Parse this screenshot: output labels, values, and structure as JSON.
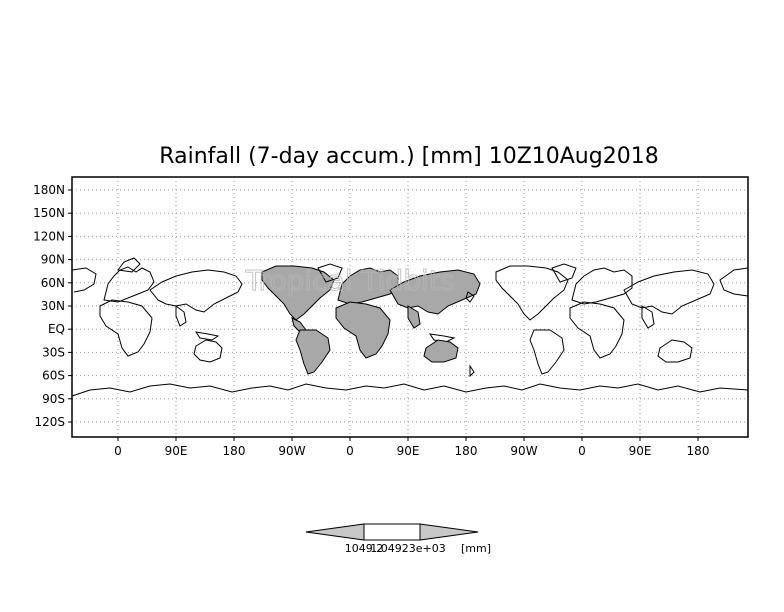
{
  "title": "Rainfall (7-day accum.) [mm] 10Z10Aug2018",
  "watermark": "Tropical Tidbits",
  "lat_labels": [
    "180N",
    "150N",
    "120N",
    "90N",
    "60N",
    "30N",
    "EQ",
    "30S",
    "60S",
    "90S",
    "120S"
  ],
  "lon_labels": [
    "0",
    "90E",
    "180",
    "90W",
    "0",
    "90E",
    "180",
    "90W",
    "0",
    "90E",
    "180"
  ],
  "colorbar": {
    "label_left": "1049.2",
    "label_overlap": "1.04923e+03",
    "label_right": "[mm]",
    "left_color": "#c8c8c8",
    "center_color": "#ffffff",
    "right_color": "#c8c8c8"
  },
  "colors": {
    "shaded_land": "#a8a8a8",
    "frame": "#000000",
    "grid": "#9a9a9a"
  }
}
